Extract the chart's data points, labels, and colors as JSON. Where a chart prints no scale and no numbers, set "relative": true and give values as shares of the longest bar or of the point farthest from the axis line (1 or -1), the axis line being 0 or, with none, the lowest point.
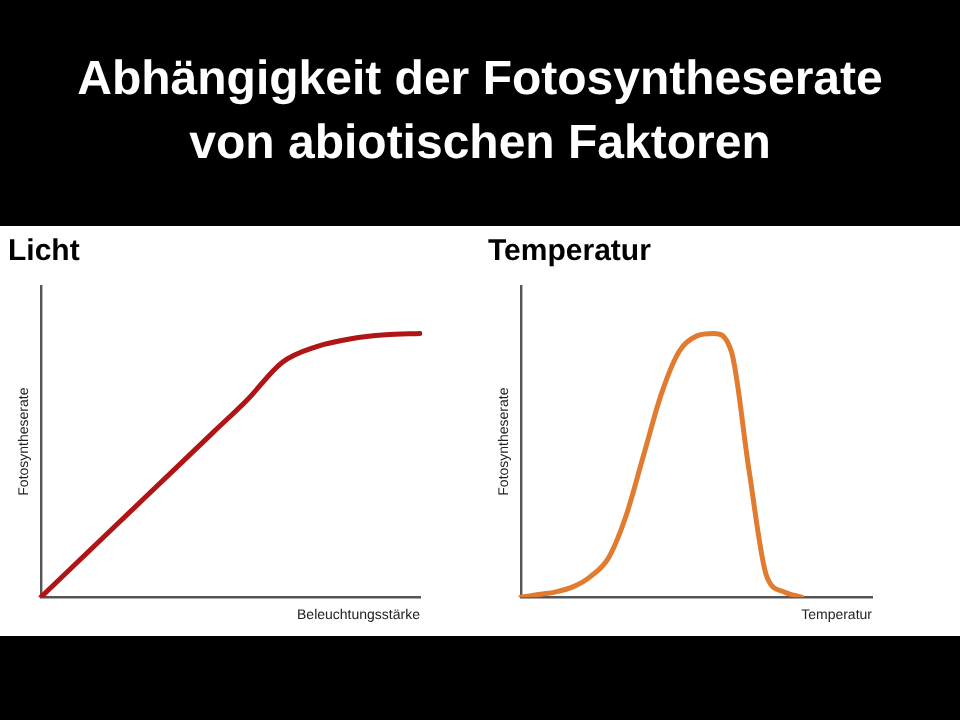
{
  "chart_data": [
    {
      "type": "line",
      "title": "Licht",
      "xlabel": "Beleuchtungsstärke",
      "ylabel": "Fotosyntheserate",
      "annotations": [
        "Abhängigkeit der Fotosyntheserate von abiotischen Faktoren"
      ],
      "relative": true,
      "grid": false,
      "legend": false,
      "marker": "none",
      "categories": [
        null,
        null,
        null,
        null,
        null,
        null,
        null,
        null,
        null,
        null,
        null,
        null
      ],
      "series": [
        {
          "color": "#b01414",
          "values": [
            0,
            0.125,
            0.25,
            0.375,
            0.5,
            0.625,
            0.75,
            0.89,
            0.95,
            0.98,
            0.995,
            1
          ]
        }
      ]
    },
    {
      "type": "line",
      "title": "Temperatur",
      "xlabel": "Temperatur",
      "ylabel": "Fotosyntheserate",
      "relative": true,
      "grid": false,
      "legend": false,
      "marker": "none",
      "categories": [
        null,
        null,
        null,
        null,
        null,
        null,
        null,
        null,
        null,
        null,
        null,
        null,
        null,
        null,
        null,
        null,
        null,
        null,
        null,
        null,
        null
      ],
      "series": [
        {
          "color": "#e07b30",
          "values": [
            0,
            0.01,
            0.02,
            0.04,
            0.08,
            0.15,
            0.31,
            0.54,
            0.77,
            0.93,
            0.99,
            1,
            0.93,
            0.48,
            0.08,
            0.02,
            0,
            null,
            null,
            null,
            null
          ]
        }
      ]
    }
  ]
}
